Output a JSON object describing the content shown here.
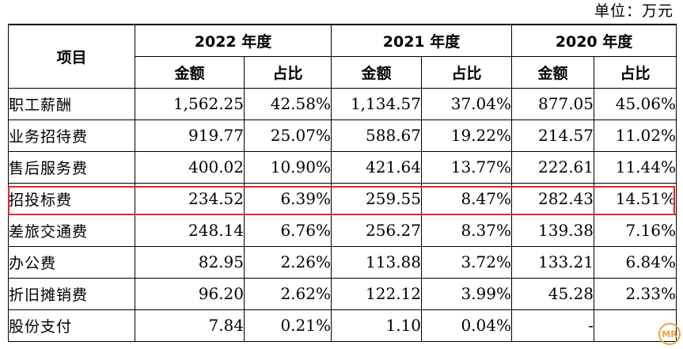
{
  "unit_label": "单位：万元",
  "header": {
    "item": "项目",
    "years": [
      "2022 年度",
      "2021 年度",
      "2020 年度"
    ],
    "amount": "金额",
    "ratio": "占比"
  },
  "rows": [
    {
      "name": "职工薪酬",
      "cells": [
        "1,562.25",
        "42.58%",
        "1,134.57",
        "37.04%",
        "877.05",
        "45.06%"
      ]
    },
    {
      "name": "业务招待费",
      "cells": [
        "919.77",
        "25.07%",
        "588.67",
        "19.22%",
        "214.57",
        "11.02%"
      ]
    },
    {
      "name": "售后服务费",
      "cells": [
        "400.02",
        "10.90%",
        "421.64",
        "13.77%",
        "222.61",
        "11.44%"
      ]
    },
    {
      "name": "招投标费",
      "cells": [
        "234.52",
        "6.39%",
        "259.55",
        "8.47%",
        "282.43",
        "14.51%"
      ]
    },
    {
      "name": "差旅交通费",
      "cells": [
        "248.14",
        "6.76%",
        "256.27",
        "8.37%",
        "139.38",
        "7.16%"
      ]
    },
    {
      "name": "办公费",
      "cells": [
        "82.95",
        "2.26%",
        "113.88",
        "3.72%",
        "133.21",
        "6.84%"
      ]
    },
    {
      "name": "折旧摊销费",
      "cells": [
        "96.20",
        "2.62%",
        "122.12",
        "3.99%",
        "45.28",
        "2.33%"
      ]
    },
    {
      "name": "股份支付",
      "cells": [
        "7.84",
        "0.21%",
        "1.10",
        "0.04%",
        "-",
        ""
      ]
    }
  ],
  "highlight_color": "#e0262e",
  "watermark": {
    "icon": "mr-logo-icon",
    "text": "MR",
    "color": "#f0a33a"
  }
}
